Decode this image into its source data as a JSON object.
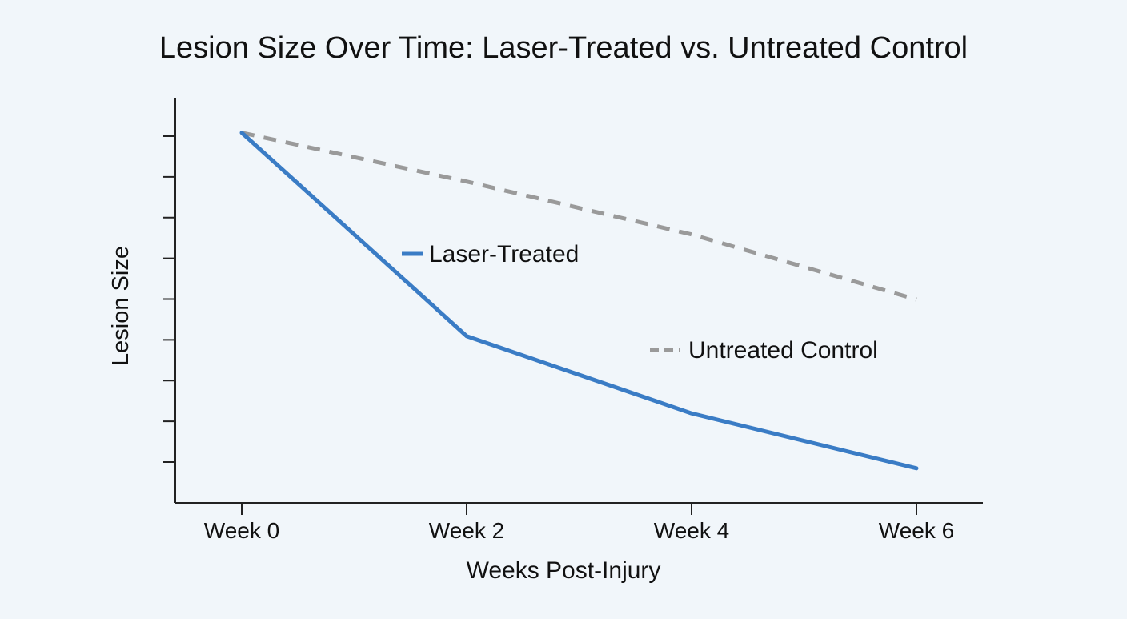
{
  "chart_data": {
    "type": "line",
    "title": "Lesion Size Over Time: Laser-Treated vs. Untreated Control",
    "xlabel": "Weeks Post-Injury",
    "ylabel": "Lesion Size",
    "categories": [
      "Week 0",
      "Week 2",
      "Week 4",
      "Week 6"
    ],
    "ylim": [
      0,
      10
    ],
    "y_tick_count": 9,
    "y_tick_labels_shown": false,
    "grid": false,
    "legend": "inline labels",
    "series": [
      {
        "name": "Laser-Treated",
        "values": [
          9.1,
          4.1,
          2.2,
          0.85
        ],
        "color": "#3a7cc5",
        "style": "solid"
      },
      {
        "name": "Untreated Control",
        "values": [
          9.1,
          7.9,
          6.6,
          5.0
        ],
        "color": "#9a9a9a",
        "style": "dashed"
      }
    ]
  }
}
